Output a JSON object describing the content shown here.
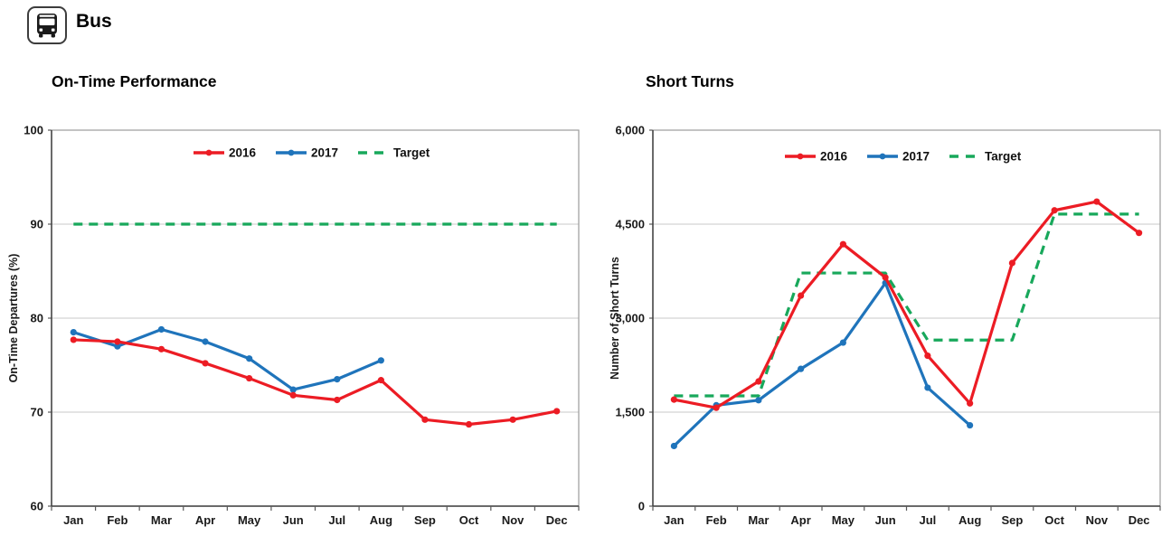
{
  "header": {
    "title": "Bus",
    "icon": "bus-icon"
  },
  "chart_data": [
    {
      "type": "line",
      "title": "On-Time Performance",
      "xlabel": "",
      "ylabel": "On-Time Departures (%)",
      "categories": [
        "Jan",
        "Feb",
        "Mar",
        "Apr",
        "May",
        "Jun",
        "Jul",
        "Aug",
        "Sep",
        "Oct",
        "Nov",
        "Dec"
      ],
      "ylim": [
        60,
        100
      ],
      "ytick_values": [
        60,
        70,
        80,
        90,
        100
      ],
      "ytick_labels": [
        "60",
        "70",
        "80",
        "90",
        "100"
      ],
      "grid": true,
      "legend_position": "top-center-inside",
      "series": [
        {
          "name": "2016",
          "color": "#EC1C24",
          "style": "solid",
          "marker": true,
          "values": [
            77.7,
            77.5,
            76.7,
            75.2,
            73.6,
            71.8,
            71.3,
            73.4,
            69.2,
            68.7,
            69.2,
            70.1
          ]
        },
        {
          "name": "2017",
          "color": "#1F74BB",
          "style": "solid",
          "marker": true,
          "values": [
            78.5,
            77.0,
            78.8,
            77.5,
            75.7,
            72.4,
            73.5,
            75.5
          ]
        },
        {
          "name": "Target",
          "color": "#18A85B",
          "style": "dashed",
          "marker": false,
          "values": [
            90,
            90,
            90,
            90,
            90,
            90,
            90,
            90,
            90,
            90,
            90,
            90
          ]
        }
      ]
    },
    {
      "type": "line",
      "title": "Short Turns",
      "xlabel": "",
      "ylabel": "Number of Short Turns",
      "categories": [
        "Jan",
        "Feb",
        "Mar",
        "Apr",
        "May",
        "Jun",
        "Jul",
        "Aug",
        "Sep",
        "Oct",
        "Nov",
        "Dec"
      ],
      "ylim": [
        0,
        6000
      ],
      "ytick_values": [
        0,
        1500,
        3000,
        4500,
        6000
      ],
      "ytick_labels": [
        "0",
        "1,500",
        "3,000",
        "4,500",
        "6,000"
      ],
      "grid": true,
      "legend_position": "top-center-inside",
      "series": [
        {
          "name": "2016",
          "color": "#EC1C24",
          "style": "solid",
          "marker": true,
          "values": [
            1700,
            1570,
            1990,
            3360,
            4180,
            3650,
            2400,
            1640,
            3880,
            4720,
            4860,
            4360
          ]
        },
        {
          "name": "2017",
          "color": "#1F74BB",
          "style": "solid",
          "marker": true,
          "values": [
            960,
            1610,
            1690,
            2190,
            2610,
            3560,
            1890,
            1290
          ]
        },
        {
          "name": "Target",
          "color": "#18A85B",
          "style": "dashed",
          "marker": false,
          "values": [
            1760,
            1760,
            1760,
            3720,
            3720,
            3720,
            2650,
            2650,
            2650,
            4660,
            4660,
            4660
          ]
        }
      ]
    }
  ]
}
